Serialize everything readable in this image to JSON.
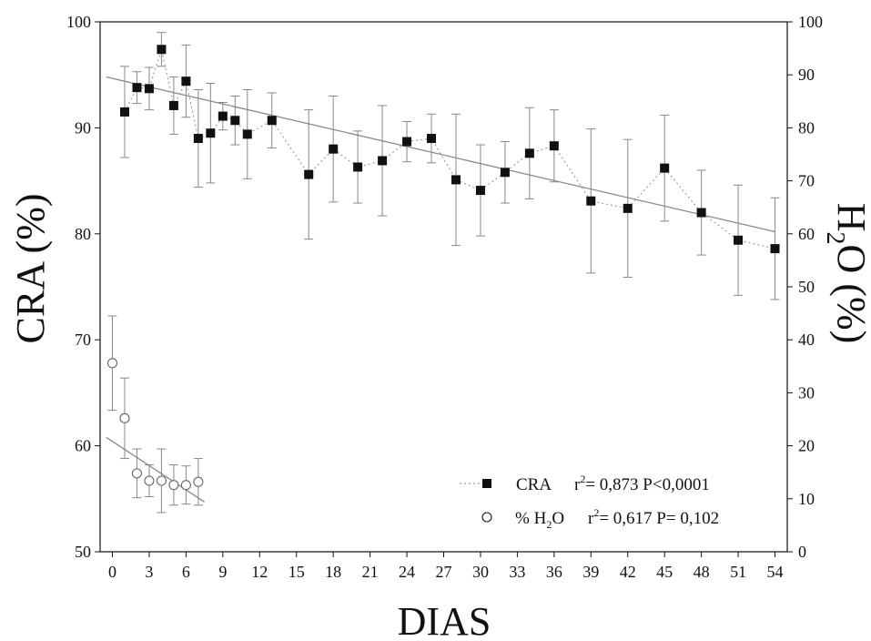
{
  "chart_data": {
    "type": "scatter",
    "xlabel": "DIAS",
    "ylabel_left": "CRA (%)",
    "ylabel_right": {
      "main": "H",
      "sub": "2",
      "tail": "O (%)"
    },
    "xlim": [
      -1,
      55
    ],
    "ylim_left": [
      50,
      100
    ],
    "ylim_right": [
      0,
      100
    ],
    "x_ticks": [
      0,
      3,
      6,
      9,
      12,
      15,
      18,
      21,
      24,
      27,
      30,
      33,
      36,
      39,
      42,
      45,
      48,
      51,
      54
    ],
    "y_left_ticks": [
      50,
      60,
      70,
      80,
      90,
      100
    ],
    "y_right_ticks": [
      0,
      10,
      20,
      30,
      40,
      50,
      60,
      70,
      80,
      90,
      100
    ],
    "colors": {
      "cra": "#111111",
      "h2o": "#666666",
      "errorbar": "#888888",
      "trend": "#888888"
    },
    "grid": false,
    "legend_position": "bottom-right",
    "series": [
      {
        "name": "CRA",
        "axis": "left",
        "marker": "filled-square",
        "connect": "dotted",
        "points": [
          {
            "x": 1,
            "y": 91.5,
            "err": 4.3
          },
          {
            "x": 2,
            "y": 93.8,
            "err": 1.5
          },
          {
            "x": 3,
            "y": 93.7,
            "err": 2.0
          },
          {
            "x": 4,
            "y": 97.4,
            "err": 1.6
          },
          {
            "x": 5,
            "y": 92.1,
            "err": 2.7
          },
          {
            "x": 6,
            "y": 94.4,
            "err": 3.4
          },
          {
            "x": 7,
            "y": 89.0,
            "err": 4.6
          },
          {
            "x": 8,
            "y": 89.5,
            "err": 4.7
          },
          {
            "x": 9,
            "y": 91.1,
            "err": 1.3
          },
          {
            "x": 10,
            "y": 90.7,
            "err": 2.3
          },
          {
            "x": 11,
            "y": 89.4,
            "err": 4.2
          },
          {
            "x": 13,
            "y": 90.7,
            "err": 2.6
          },
          {
            "x": 16,
            "y": 85.6,
            "err": 6.1
          },
          {
            "x": 18,
            "y": 88.0,
            "err": 5.0
          },
          {
            "x": 20,
            "y": 86.3,
            "err": 3.4
          },
          {
            "x": 22,
            "y": 86.9,
            "err": 5.2
          },
          {
            "x": 24,
            "y": 88.7,
            "err": 1.9
          },
          {
            "x": 26,
            "y": 89.0,
            "err": 2.3
          },
          {
            "x": 28,
            "y": 85.1,
            "err": 6.2
          },
          {
            "x": 30,
            "y": 84.1,
            "err": 4.3
          },
          {
            "x": 32,
            "y": 85.8,
            "err": 2.9
          },
          {
            "x": 34,
            "y": 87.6,
            "err": 4.3
          },
          {
            "x": 36,
            "y": 88.3,
            "err": 3.4
          },
          {
            "x": 39,
            "y": 83.1,
            "err": 6.8
          },
          {
            "x": 42,
            "y": 82.4,
            "err": 6.5
          },
          {
            "x": 45,
            "y": 86.2,
            "err": 5.0
          },
          {
            "x": 48,
            "y": 82.0,
            "err": 4.0
          },
          {
            "x": 51,
            "y": 79.4,
            "err": 5.2
          },
          {
            "x": 54,
            "y": 78.6,
            "err": 4.8
          }
        ],
        "trend": {
          "x": [
            -0.5,
            54
          ],
          "y": [
            94.8,
            80.2
          ]
        }
      },
      {
        "name": "% H2O",
        "axis": "right",
        "marker": "open-circle",
        "connect": "none",
        "points": [
          {
            "x": 0,
            "y": 35.6,
            "err": 8.9
          },
          {
            "x": 1,
            "y": 25.2,
            "err": 7.6
          },
          {
            "x": 2,
            "y": 14.8,
            "err": 4.6
          },
          {
            "x": 3,
            "y": 13.4,
            "err": 3.0
          },
          {
            "x": 4,
            "y": 13.4,
            "err": 6.0
          },
          {
            "x": 5,
            "y": 12.6,
            "err": 3.8
          },
          {
            "x": 6,
            "y": 12.6,
            "err": 3.6
          },
          {
            "x": 7,
            "y": 13.2,
            "err": 4.4
          }
        ],
        "trend": {
          "x": [
            -0.5,
            7.5
          ],
          "y": [
            21.6,
            9.4
          ]
        }
      }
    ],
    "legend": [
      {
        "series": "CRA",
        "label": "CRA",
        "stat_r": "r",
        "stat_exp": "2",
        "stat_rest": "= 0,873 P<0,0001"
      },
      {
        "series": "% H2O",
        "label_main": "% H",
        "label_sub": "2",
        "label_tail": "O",
        "stat_r": "r",
        "stat_exp": "2",
        "stat_rest": "= 0,617 P= 0,102"
      }
    ]
  }
}
